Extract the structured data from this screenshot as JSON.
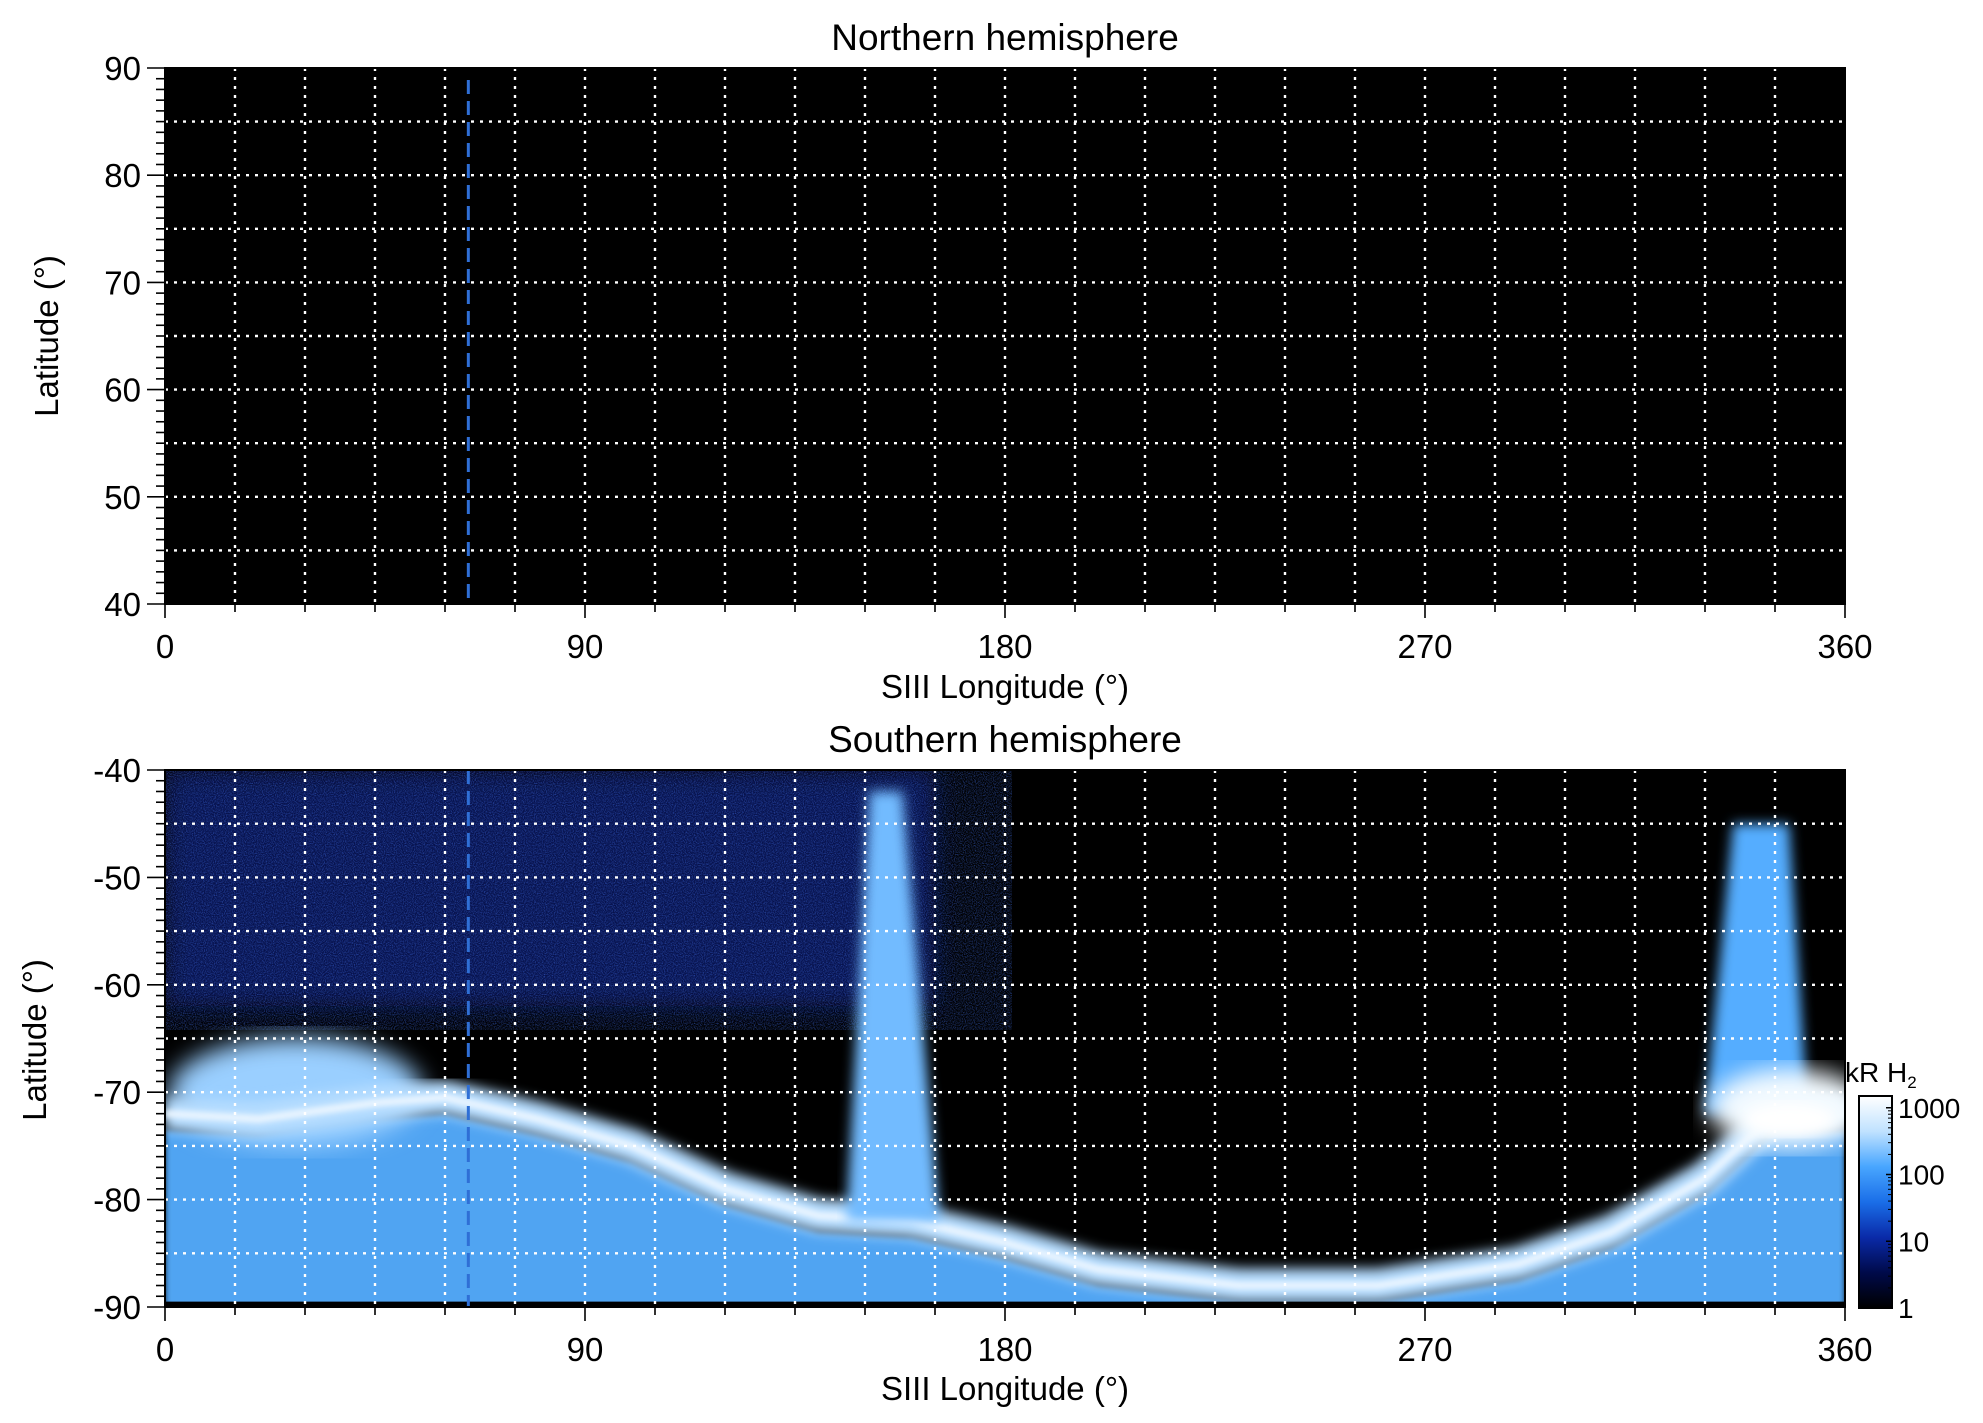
{
  "chart_data": [
    {
      "type": "heatmap",
      "title": "Northern hemisphere",
      "xlabel": "SIII Longitude (°)",
      "ylabel": "Latitude (°)",
      "xlim": [
        0,
        360
      ],
      "ylim": [
        40,
        90
      ],
      "xticks": [
        0,
        90,
        180,
        270,
        360
      ],
      "yticks": [
        40,
        50,
        60,
        70,
        80,
        90
      ],
      "grid": true,
      "grid_x_step": 15,
      "grid_y_step": 5,
      "reference_longitude": 65,
      "emission": "none (uniform black, ~1 kR)"
    },
    {
      "type": "heatmap",
      "title": "Southern hemisphere",
      "xlabel": "SIII Longitude (°)",
      "ylabel": "Latitude (°)",
      "xlim": [
        0,
        360
      ],
      "ylim": [
        -90,
        -40
      ],
      "xticks": [
        0,
        90,
        180,
        270,
        360
      ],
      "yticks": [
        -90,
        -80,
        -70,
        -60,
        -50,
        -40
      ],
      "grid": true,
      "grid_x_step": 15,
      "grid_y_step": 5,
      "reference_longitude": 65,
      "colorbar": {
        "label_main": "kR H",
        "label_sub": "2",
        "scale": "log",
        "range": [
          1,
          1500
        ],
        "ticks": [
          1,
          10,
          100,
          1000
        ],
        "colors": [
          "#000000",
          "#000a4a",
          "#0a2aa8",
          "#1a6ee8",
          "#48a6ff",
          "#c0e2ff",
          "#ffffff"
        ]
      },
      "main_oval_ridge": [
        [
          0,
          -72
        ],
        [
          20,
          -72.5
        ],
        [
          45,
          -71
        ],
        [
          60,
          -70.5
        ],
        [
          80,
          -72.5
        ],
        [
          100,
          -75
        ],
        [
          120,
          -79
        ],
        [
          140,
          -81.5
        ],
        [
          160,
          -82
        ],
        [
          180,
          -84
        ],
        [
          200,
          -86.5
        ],
        [
          230,
          -88
        ],
        [
          260,
          -88
        ],
        [
          290,
          -86
        ],
        [
          310,
          -83
        ],
        [
          330,
          -78
        ],
        [
          345,
          -72
        ],
        [
          360,
          -72
        ]
      ],
      "emission_features": [
        {
          "name": "dusk-oval-band",
          "lon": [
            0,
            70
          ],
          "lat": [
            -75,
            -62
          ],
          "level_kR": 300
        },
        {
          "name": "diffuse-region",
          "lon": [
            0,
            165
          ],
          "lat": [
            -62,
            -40
          ],
          "level_kR": 8
        },
        {
          "name": "polar-arm",
          "lon": [
            150,
            165
          ],
          "lat": [
            -82,
            -42
          ],
          "level_kR": 200
        },
        {
          "name": "dawn-oval-peak",
          "lon": [
            330,
            360
          ],
          "lat": [
            -75,
            -68
          ],
          "level_kR": 1200
        },
        {
          "name": "dawn-arm",
          "lon": [
            334,
            350
          ],
          "lat": [
            -70,
            -45
          ],
          "level_kR": 150
        }
      ]
    }
  ]
}
